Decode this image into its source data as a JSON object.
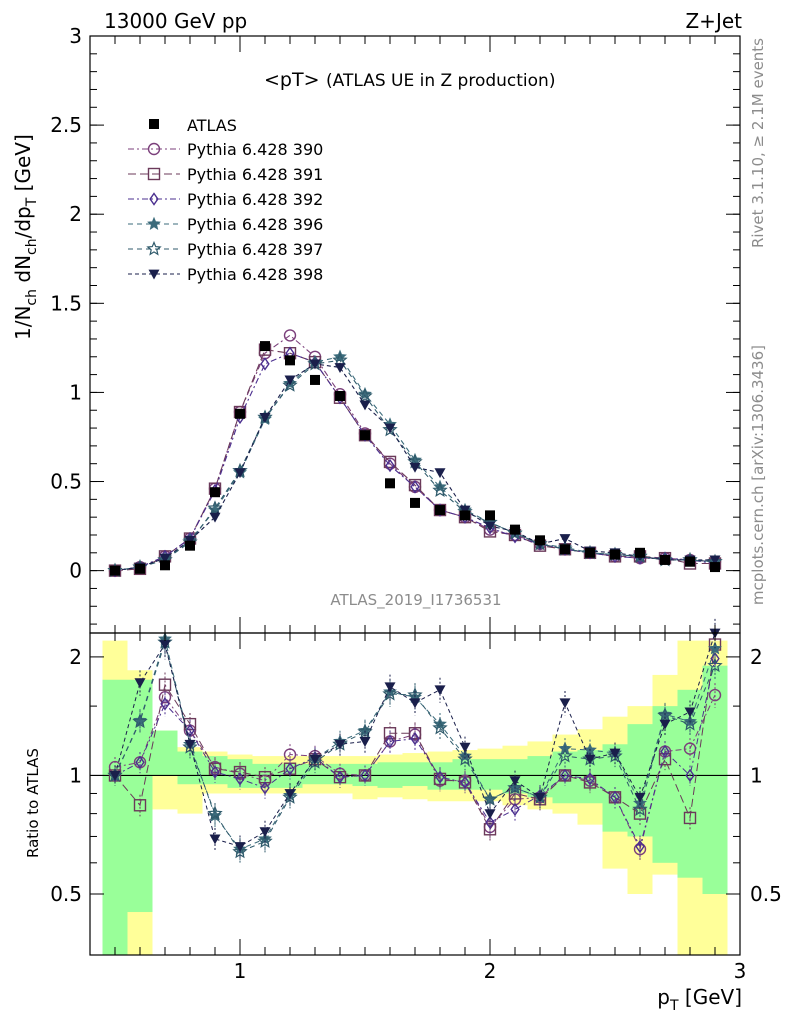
{
  "header": {
    "energy_label": "13000 GeV pp",
    "process_label": "Z+Jet",
    "title": "<pT>",
    "title_suffix": "(ATLAS UE in Z production)",
    "side_text_rivet": "Rivet 3.1.10, ≥ 2.1M events",
    "side_text_url": "mcplots.cern.ch [arXiv:1306.3436]",
    "analysis_id": "ATLAS_2019_I1736531"
  },
  "chart_data": {
    "type": "scatter",
    "ylabel_main": "1/N_ch dN_ch/dp_T [GeV]",
    "ylabel_ratio": "Ratio to ATLAS",
    "xlabel": "p_T [GeV]",
    "xlim": [
      0.4,
      3.0
    ],
    "ylim_main": [
      -0.35,
      3.0
    ],
    "ylim_ratio": [
      0.35,
      2.3
    ],
    "x_ticks": [
      "1",
      "2",
      "3"
    ],
    "y_ticks_main": [
      "0",
      "0.5",
      "1",
      "1.5",
      "2",
      "2.5",
      "3"
    ],
    "y_ticks_ratio": [
      "0.5",
      "1",
      "2"
    ],
    "x": [
      0.5,
      0.6,
      0.7,
      0.8,
      0.9,
      1.0,
      1.1,
      1.2,
      1.3,
      1.4,
      1.5,
      1.6,
      1.7,
      1.8,
      1.9,
      2.0,
      2.1,
      2.2,
      2.3,
      2.4,
      2.5,
      2.6,
      2.7,
      2.8,
      2.9
    ],
    "data": {
      "name": "ATLAS",
      "color": "#000000",
      "values": [
        0.0,
        0.01,
        0.03,
        0.14,
        0.44,
        0.88,
        1.26,
        1.18,
        1.07,
        0.98,
        0.76,
        0.49,
        0.38,
        0.34,
        0.31,
        0.31,
        0.23,
        0.17,
        0.12,
        0.1,
        0.09,
        0.1,
        0.06,
        0.05,
        0.02
      ]
    },
    "series": [
      {
        "name": "Pythia 6.428 390",
        "color": "#7b3f7b",
        "marker": "circle-open",
        "values": [
          0.0,
          0.02,
          0.08,
          0.18,
          0.46,
          0.89,
          1.22,
          1.32,
          1.2,
          0.99,
          0.77,
          0.6,
          0.47,
          0.34,
          0.3,
          0.23,
          0.2,
          0.15,
          0.12,
          0.1,
          0.08,
          0.07,
          0.07,
          0.06,
          0.05
        ]
      },
      {
        "name": "Pythia 6.428 391",
        "color": "#6b3a5a",
        "marker": "square-open",
        "values": [
          0.0,
          0.01,
          0.08,
          0.18,
          0.46,
          0.89,
          1.24,
          1.22,
          1.17,
          0.97,
          0.76,
          0.61,
          0.48,
          0.34,
          0.3,
          0.22,
          0.2,
          0.14,
          0.12,
          0.1,
          0.08,
          0.08,
          0.07,
          0.04,
          0.04
        ]
      },
      {
        "name": "Pythia 6.428 392",
        "color": "#4b2f8f",
        "marker": "diamond-open",
        "values": [
          0.0,
          0.02,
          0.08,
          0.18,
          0.45,
          0.86,
          1.16,
          1.22,
          1.17,
          0.97,
          0.76,
          0.59,
          0.47,
          0.34,
          0.3,
          0.24,
          0.19,
          0.15,
          0.12,
          0.1,
          0.08,
          0.07,
          0.07,
          0.06,
          0.04
        ]
      },
      {
        "name": "Pythia 6.428 396",
        "color": "#3b6b7b",
        "marker": "star-filled",
        "values": [
          0.0,
          0.02,
          0.06,
          0.17,
          0.34,
          0.55,
          0.85,
          1.05,
          1.17,
          1.2,
          0.99,
          0.82,
          0.62,
          0.47,
          0.34,
          0.27,
          0.21,
          0.15,
          0.13,
          0.1,
          0.09,
          0.08,
          0.06,
          0.06,
          0.05
        ]
      },
      {
        "name": "Pythia 6.428 397",
        "color": "#2f5a6b",
        "marker": "star-open",
        "values": [
          0.0,
          0.02,
          0.06,
          0.16,
          0.35,
          0.56,
          0.86,
          1.04,
          1.16,
          1.18,
          0.98,
          0.79,
          0.61,
          0.45,
          0.33,
          0.27,
          0.21,
          0.15,
          0.12,
          0.1,
          0.09,
          0.08,
          0.06,
          0.06,
          0.05
        ]
      },
      {
        "name": "Pythia 6.428 398",
        "color": "#1a1f4b",
        "marker": "triangle-down",
        "values": [
          0.0,
          0.02,
          0.07,
          0.17,
          0.3,
          0.55,
          0.86,
          1.07,
          1.16,
          1.14,
          0.93,
          0.8,
          0.58,
          0.55,
          0.34,
          0.25,
          0.22,
          0.15,
          0.18,
          0.11,
          0.1,
          0.08,
          0.06,
          0.06,
          0.06
        ]
      }
    ],
    "ratio_band_yellow": [
      [
        0.55,
        2.2
      ],
      [
        0.35,
        1.85
      ],
      [
        0.82,
        1.3
      ],
      [
        0.8,
        1.18
      ],
      [
        0.9,
        1.15
      ],
      [
        0.9,
        1.13
      ],
      [
        0.9,
        1.12
      ],
      [
        0.9,
        1.12
      ],
      [
        0.9,
        1.12
      ],
      [
        0.9,
        1.12
      ],
      [
        0.87,
        1.12
      ],
      [
        0.88,
        1.13
      ],
      [
        0.87,
        1.14
      ],
      [
        0.86,
        1.15
      ],
      [
        0.86,
        1.16
      ],
      [
        0.86,
        1.17
      ],
      [
        0.84,
        1.19
      ],
      [
        0.82,
        1.22
      ],
      [
        0.8,
        1.27
      ],
      [
        0.75,
        1.31
      ],
      [
        0.58,
        1.41
      ],
      [
        0.5,
        1.5
      ],
      [
        0.56,
        1.8
      ],
      [
        0.35,
        2.2
      ],
      [
        0.35,
        2.2
      ]
    ],
    "ratio_band_green": [
      [
        0.35,
        1.75
      ],
      [
        0.45,
        1.75
      ],
      [
        1.0,
        1.3
      ],
      [
        0.95,
        1.15
      ],
      [
        0.95,
        1.12
      ],
      [
        0.93,
        1.1
      ],
      [
        0.93,
        1.07
      ],
      [
        0.93,
        1.07
      ],
      [
        0.95,
        1.07
      ],
      [
        0.95,
        1.07
      ],
      [
        0.94,
        1.07
      ],
      [
        0.93,
        1.08
      ],
      [
        0.94,
        1.08
      ],
      [
        0.92,
        1.08
      ],
      [
        0.92,
        1.1
      ],
      [
        0.92,
        1.1
      ],
      [
        0.9,
        1.1
      ],
      [
        0.88,
        1.12
      ],
      [
        0.85,
        1.15
      ],
      [
        0.85,
        1.16
      ],
      [
        0.72,
        1.2
      ],
      [
        0.7,
        1.35
      ],
      [
        0.6,
        1.5
      ],
      [
        0.55,
        1.65
      ],
      [
        0.5,
        1.9
      ]
    ],
    "ratio": [
      {
        "name": "Pythia 6.428 390",
        "values": [
          1.05,
          1.08,
          1.58,
          1.3,
          1.05,
          1.01,
          0.97,
          1.13,
          1.12,
          1.01,
          1.0,
          1.22,
          1.27,
          0.97,
          0.97,
          0.74,
          0.87,
          0.88,
          1.0,
          0.97,
          0.88,
          0.65,
          1.15,
          1.17,
          1.6
        ]
      },
      {
        "name": "Pythia 6.428 391",
        "values": [
          1.0,
          0.84,
          1.7,
          1.35,
          1.04,
          1.02,
          0.99,
          1.04,
          1.1,
          0.99,
          1.0,
          1.28,
          1.28,
          0.98,
          0.96,
          0.73,
          0.9,
          0.87,
          1.0,
          0.96,
          0.88,
          0.8,
          1.1,
          0.78,
          2.15
        ]
      },
      {
        "name": "Pythia 6.428 392",
        "values": [
          1.0,
          1.08,
          1.52,
          1.3,
          1.02,
          0.98,
          0.93,
          1.04,
          1.11,
          0.99,
          1.0,
          1.22,
          1.24,
          0.99,
          0.96,
          0.76,
          0.82,
          0.89,
          1.0,
          0.98,
          0.88,
          0.66,
          1.15,
          1.0,
          1.98
        ]
      },
      {
        "name": "Pythia 6.428 396",
        "values": [
          1.0,
          1.38,
          2.22,
          1.2,
          0.79,
          0.65,
          0.69,
          0.89,
          1.1,
          1.22,
          1.3,
          1.63,
          1.58,
          1.35,
          1.12,
          0.87,
          0.93,
          0.88,
          1.17,
          1.16,
          1.14,
          0.85,
          1.43,
          1.37,
          2.1
        ]
      },
      {
        "name": "Pythia 6.428 397",
        "values": [
          1.0,
          1.37,
          2.18,
          1.18,
          0.8,
          0.64,
          0.68,
          0.88,
          1.08,
          1.2,
          1.29,
          1.61,
          1.6,
          1.32,
          1.1,
          0.87,
          0.93,
          0.88,
          1.12,
          1.1,
          1.12,
          0.82,
          1.42,
          1.35,
          1.9
        ]
      },
      {
        "name": "Pythia 6.428 398",
        "values": [
          1.0,
          1.72,
          2.15,
          1.2,
          0.69,
          0.66,
          0.72,
          0.9,
          1.1,
          1.2,
          1.22,
          1.68,
          1.53,
          1.65,
          1.18,
          0.8,
          0.97,
          0.88,
          1.53,
          1.1,
          1.14,
          0.88,
          1.35,
          1.45,
          2.3
        ]
      }
    ]
  },
  "colors": {
    "band_yellow": "#ffff99",
    "band_green": "#99ff99"
  }
}
